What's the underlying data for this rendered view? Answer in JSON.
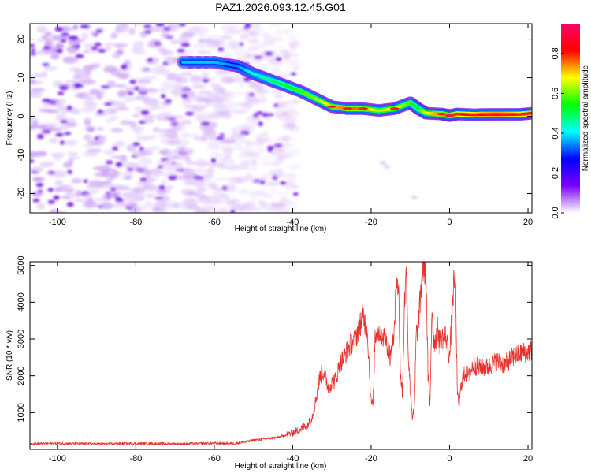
{
  "figure_title": "PAZ1.2026.093.12.45.G01",
  "chart_data": [
    {
      "type": "heatmap",
      "title": "PAZ1.2026.093.12.45.G01",
      "xlabel": "Height of straight line (km)",
      "ylabel": "Frequency (Hz)",
      "xlim": [
        -107,
        21
      ],
      "ylim": [
        -25,
        24
      ],
      "xticks": [
        -100,
        -80,
        -60,
        -40,
        -20,
        0,
        20
      ],
      "xtick_labels": [
        "-100",
        "-80",
        "-60",
        "-40",
        "-20",
        "0",
        "20"
      ],
      "yticks": [
        -20,
        -10,
        0,
        10,
        20
      ],
      "ytick_labels": [
        "-20",
        "-10",
        "0",
        "10",
        "20"
      ],
      "ridge": {
        "x": [
          -68,
          -60,
          -54,
          -50,
          -46,
          -42,
          -38,
          -34,
          -30,
          -26,
          -22,
          -18,
          -14,
          -10,
          -8,
          -6,
          -2,
          0,
          2,
          6,
          10,
          14,
          18,
          21
        ],
        "y": [
          14,
          14,
          13,
          11,
          9.5,
          8,
          6.5,
          4.5,
          2.5,
          2,
          2,
          1.5,
          2,
          3.5,
          2,
          0.8,
          0.6,
          0.2,
          0.6,
          0.4,
          0.5,
          0.5,
          0.5,
          0.8
        ],
        "amplitude": [
          0.4,
          0.4,
          0.35,
          0.45,
          0.5,
          0.55,
          0.6,
          0.65,
          0.75,
          0.8,
          0.8,
          0.65,
          0.75,
          0.6,
          0.55,
          0.7,
          0.8,
          0.75,
          0.85,
          0.9,
          0.95,
          0.95,
          0.9,
          0.8
        ]
      },
      "noise_region_x": [
        -107,
        -45
      ],
      "colorbar": {
        "label": "Normalized spectral amplitude",
        "range": [
          0,
          0.95
        ],
        "ticks": [
          0.0,
          0.2,
          0.4,
          0.6,
          0.8
        ],
        "tick_labels": [
          "0.0",
          "0.2",
          "0.4",
          "0.6",
          "0.8"
        ],
        "colors": [
          "#ffffff",
          "#7b00ff",
          "#0000ff",
          "#00ffff",
          "#00ff00",
          "#ffff00",
          "#ff0000",
          "#ff0066"
        ]
      }
    },
    {
      "type": "line",
      "title": "",
      "xlabel": "Height of straight line (km)",
      "ylabel": "SNR (10 * v/v)",
      "xlim": [
        -107,
        21
      ],
      "ylim": [
        0,
        5100
      ],
      "xticks": [
        -100,
        -80,
        -60,
        -40,
        -20,
        0,
        20
      ],
      "xtick_labels": [
        "-100",
        "-80",
        "-60",
        "-40",
        "-20",
        "0",
        "20"
      ],
      "yticks": [
        1000,
        2000,
        3000,
        4000,
        5000
      ],
      "ytick_labels": [
        "1000",
        "2000",
        "3000",
        "4000",
        "5000"
      ],
      "series": [
        {
          "name": "SNR",
          "color": "#e8322e",
          "x": [
            -107,
            -100,
            -90,
            -80,
            -70,
            -60,
            -55,
            -52,
            -50,
            -46,
            -44,
            -42,
            -40,
            -38,
            -36,
            -35,
            -34,
            -33,
            -32,
            -31,
            -30,
            -29,
            -28,
            -27,
            -26,
            -25,
            -24,
            -23,
            -22,
            -21,
            -20.5,
            -20,
            -19.5,
            -19,
            -18,
            -17,
            -16,
            -15,
            -14,
            -13.5,
            -13,
            -12.5,
            -12,
            -11.5,
            -11,
            -10.5,
            -10,
            -9.5,
            -9,
            -8.5,
            -8,
            -7.5,
            -7,
            -6.5,
            -6,
            -5.5,
            -5,
            -4.5,
            -4,
            -3.5,
            -3,
            -2.5,
            -2,
            -1.5,
            -1,
            -0.5,
            0,
            1,
            1.5,
            2,
            2.5,
            3,
            4,
            5,
            6,
            8,
            10,
            12,
            14,
            16,
            18,
            20,
            21
          ],
          "y": [
            150,
            160,
            150,
            160,
            150,
            165,
            160,
            200,
            250,
            300,
            320,
            380,
            450,
            550,
            700,
            900,
            1400,
            2000,
            2100,
            1700,
            1800,
            1900,
            2300,
            2500,
            2700,
            2900,
            3000,
            3400,
            3600,
            3300,
            2300,
            1300,
            1200,
            3100,
            3200,
            3100,
            2900,
            2500,
            3300,
            4900,
            4300,
            2000,
            1500,
            4000,
            4800,
            2500,
            1600,
            900,
            1000,
            3100,
            3400,
            4000,
            4800,
            5100,
            4700,
            2000,
            1200,
            3900,
            2900,
            3000,
            3300,
            2900,
            3100,
            3000,
            3100,
            2800,
            2500,
            4400,
            4600,
            1400,
            1250,
            1800,
            2100,
            2000,
            2300,
            2200,
            2250,
            2400,
            2300,
            2500,
            2600,
            2650,
            2700
          ]
        }
      ]
    }
  ]
}
